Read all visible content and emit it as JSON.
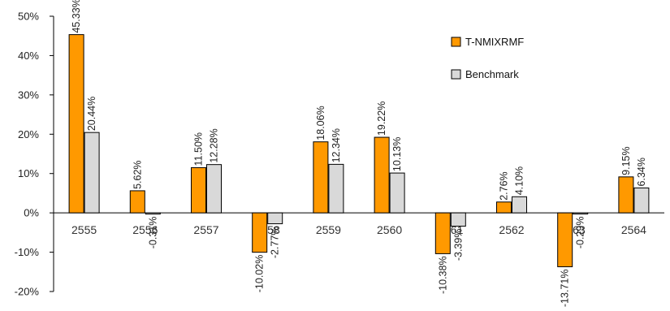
{
  "chart_data": {
    "type": "bar",
    "categories": [
      "2555",
      "2556",
      "2557",
      "2558",
      "2559",
      "2560",
      "2561",
      "2562",
      "2563",
      "2564"
    ],
    "series": [
      {
        "name": "T-NMIXRMF",
        "color": "#ff9900",
        "values": [
          45.33,
          5.62,
          11.5,
          -10.02,
          18.06,
          19.22,
          -10.38,
          2.76,
          -13.71,
          9.15
        ],
        "labels": [
          "45.33%",
          "5.62%",
          "11.50%",
          "-10.02%",
          "18.06%",
          "19.22%",
          "-10.38%",
          "2.76%",
          "-13.71%",
          "9.15%"
        ]
      },
      {
        "name": "Benchmark",
        "color": "#d9d9d9",
        "values": [
          20.44,
          -0.31,
          12.28,
          -2.77,
          12.34,
          10.13,
          -3.39,
          4.1,
          -0.29,
          6.34
        ],
        "labels": [
          "20.44%",
          "-0.31%",
          "12.28%",
          "-2.77%",
          "12.34%",
          "10.13%",
          "-3.39%",
          "4.10%",
          "-0.29%",
          "6.34%"
        ]
      }
    ],
    "ylim": [
      -20,
      50
    ],
    "yticks": [
      -20,
      -10,
      0,
      10,
      20,
      30,
      40,
      50
    ],
    "ytick_labels": [
      "-20%",
      "-10%",
      "0%",
      "10%",
      "20%",
      "30%",
      "40%",
      "50%"
    ],
    "grid": false,
    "legend_position": "top-right"
  }
}
